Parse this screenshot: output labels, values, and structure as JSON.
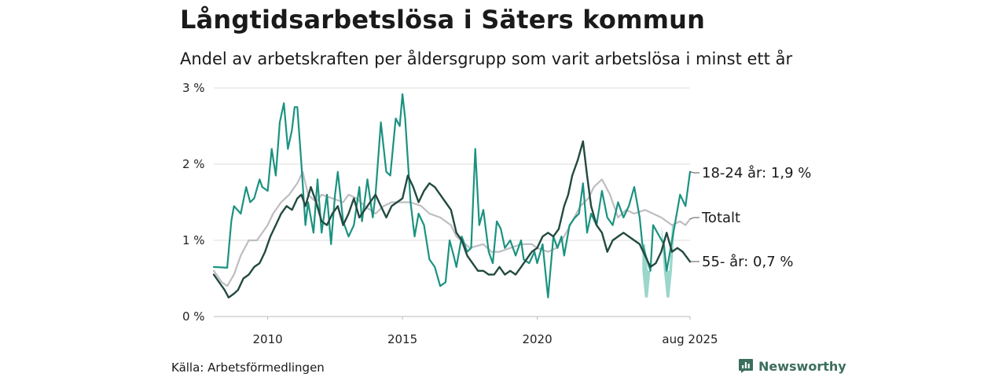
{
  "header": {
    "title": "Långtidsarbetslösa i Säters kommun",
    "subtitle": "Andel av arbetskraften per åldersgrupp som varit arbetslösa i minst ett år"
  },
  "footer": {
    "source": "Källa: Arbetsförmedlingen",
    "brand": "Newsworthy"
  },
  "colors": {
    "youth": "#1b9280",
    "total": "#bdbdc2",
    "older": "#224a40",
    "band": "#8fd1c5",
    "grid": "#dcdcdc",
    "brand": "#3c6e5e"
  },
  "icons": {
    "brand": "bar-chart-icon"
  },
  "chart_data": {
    "type": "line",
    "x_range": [
      2008.0,
      2025.67
    ],
    "ylim": [
      0,
      3
    ],
    "y_ticks": [
      {
        "value": 0,
        "label": "0 %"
      },
      {
        "value": 1,
        "label": "1 %"
      },
      {
        "value": 2,
        "label": "2 %"
      },
      {
        "value": 3,
        "label": "3 %"
      }
    ],
    "x_ticks": [
      {
        "value": 2010,
        "label": "2010"
      },
      {
        "value": 2015,
        "label": "2015"
      },
      {
        "value": 2020,
        "label": "2020"
      },
      {
        "value": 2025.67,
        "label": "aug 2025"
      }
    ],
    "grid": "horizontal",
    "end_labels": [
      {
        "series": "18-24 år",
        "text": "18-24 år: 1,9 %",
        "value": 1.9
      },
      {
        "series": "Totalt",
        "text": "Totalt",
        "value": 1.28
      },
      {
        "series": "55- år",
        "text": "55- år: 0,7 %",
        "value": 0.72
      }
    ],
    "uncertainty_band": {
      "series": "18-24 år",
      "x": [
        2023.9,
        2024.0,
        2024.1,
        2024.2,
        2024.3,
        2024.5,
        2024.6,
        2024.7,
        2024.8,
        2024.9,
        2025.0,
        2025.1
      ],
      "upper": [
        0.95,
        0.95,
        0.6,
        0.6,
        1.2,
        1.2,
        1.2,
        0.95,
        0.6,
        0.6,
        1.2,
        1.2
      ],
      "lower": [
        0.6,
        0.25,
        0.25,
        0.6,
        1.2,
        1.2,
        1.2,
        0.6,
        0.25,
        0.25,
        0.6,
        1.2
      ]
    },
    "series": [
      {
        "name": "18-24 år",
        "x": [
          2008.0,
          2008.5,
          2008.65,
          2008.75,
          2009.0,
          2009.2,
          2009.35,
          2009.5,
          2009.7,
          2009.8,
          2010.0,
          2010.15,
          2010.3,
          2010.45,
          2010.6,
          2010.75,
          2010.9,
          2011.0,
          2011.1,
          2011.25,
          2011.4,
          2011.5,
          2011.7,
          2011.85,
          2012.0,
          2012.2,
          2012.35,
          2012.5,
          2012.6,
          2012.8,
          2013.0,
          2013.2,
          2013.4,
          2013.5,
          2013.7,
          2013.9,
          2014.0,
          2014.2,
          2014.4,
          2014.55,
          2014.75,
          2014.9,
          2015.0,
          2015.1,
          2015.3,
          2015.45,
          2015.6,
          2015.8,
          2016.0,
          2016.2,
          2016.4,
          2016.6,
          2016.75,
          2016.9,
          2017.0,
          2017.2,
          2017.4,
          2017.55,
          2017.7,
          2017.85,
          2018.0,
          2018.2,
          2018.35,
          2018.5,
          2018.65,
          2018.8,
          2019.0,
          2019.2,
          2019.4,
          2019.5,
          2019.7,
          2019.9,
          2020.0,
          2020.2,
          2020.4,
          2020.6,
          2020.75,
          2020.9,
          2021.0,
          2021.2,
          2021.4,
          2021.55,
          2021.7,
          2021.85,
          2022.0,
          2022.2,
          2022.4,
          2022.6,
          2022.8,
          2023.0,
          2023.2,
          2023.4,
          2023.6,
          2023.8,
          2023.9,
          2024.2,
          2024.3,
          2024.7,
          2024.8,
          2025.1,
          2025.3,
          2025.5,
          2025.67
        ],
        "values": [
          0.65,
          0.64,
          1.25,
          1.45,
          1.35,
          1.7,
          1.5,
          1.55,
          1.8,
          1.7,
          1.65,
          2.2,
          1.85,
          2.55,
          2.8,
          2.2,
          2.45,
          2.75,
          2.75,
          2.0,
          1.2,
          1.5,
          1.1,
          1.8,
          1.1,
          1.6,
          0.95,
          1.6,
          1.9,
          1.25,
          1.05,
          1.2,
          1.7,
          1.25,
          1.8,
          1.3,
          1.6,
          2.55,
          1.9,
          1.85,
          2.6,
          2.5,
          2.92,
          2.6,
          1.5,
          1.05,
          1.35,
          1.2,
          0.75,
          0.65,
          0.4,
          0.45,
          1.0,
          0.8,
          0.65,
          1.05,
          0.85,
          0.9,
          2.2,
          1.2,
          1.4,
          0.85,
          0.7,
          1.25,
          1.15,
          0.9,
          1.0,
          0.8,
          1.0,
          0.75,
          0.7,
          0.85,
          0.7,
          0.95,
          0.25,
          1.05,
          0.9,
          1.05,
          0.8,
          1.2,
          1.3,
          1.35,
          1.75,
          1.1,
          1.35,
          1.2,
          1.65,
          1.3,
          1.2,
          1.5,
          1.3,
          1.45,
          1.7,
          1.3,
          0.95,
          0.6,
          1.2,
          0.95,
          0.6,
          1.2,
          1.6,
          1.45,
          1.9
        ]
      },
      {
        "name": "Totalt",
        "x": [
          2008.0,
          2008.3,
          2008.5,
          2008.75,
          2009.0,
          2009.3,
          2009.6,
          2010.0,
          2010.2,
          2010.5,
          2010.8,
          2011.1,
          2011.3,
          2011.5,
          2011.8,
          2012.0,
          2012.4,
          2012.8,
          2013.0,
          2013.3,
          2013.6,
          2014.0,
          2014.3,
          2014.6,
          2015.0,
          2015.3,
          2015.7,
          2016.0,
          2016.4,
          2016.8,
          2017.0,
          2017.5,
          2018.0,
          2018.3,
          2018.6,
          2019.0,
          2019.4,
          2019.8,
          2020.0,
          2020.4,
          2020.7,
          2021.0,
          2021.3,
          2021.6,
          2021.9,
          2022.1,
          2022.4,
          2022.7,
          2023.0,
          2023.3,
          2023.6,
          2024.0,
          2024.3,
          2024.6,
          2025.0,
          2025.3,
          2025.5,
          2025.67
        ],
        "values": [
          0.6,
          0.45,
          0.4,
          0.55,
          0.8,
          1.0,
          1.0,
          1.2,
          1.35,
          1.5,
          1.6,
          1.75,
          1.9,
          1.6,
          1.5,
          1.6,
          1.55,
          1.5,
          1.6,
          1.55,
          1.45,
          1.35,
          1.45,
          1.5,
          1.5,
          1.5,
          1.45,
          1.35,
          1.3,
          1.2,
          1.05,
          0.9,
          0.95,
          0.85,
          0.85,
          0.9,
          0.95,
          0.95,
          0.9,
          0.85,
          0.9,
          1.05,
          1.25,
          1.45,
          1.55,
          1.7,
          1.8,
          1.6,
          1.3,
          1.4,
          1.35,
          1.4,
          1.35,
          1.3,
          1.2,
          1.25,
          1.2,
          1.28
        ]
      },
      {
        "name": "55- år",
        "x": [
          2008.0,
          2008.2,
          2008.4,
          2008.55,
          2008.75,
          2008.9,
          2009.1,
          2009.3,
          2009.5,
          2009.7,
          2009.9,
          2010.1,
          2010.3,
          2010.5,
          2010.7,
          2010.9,
          2011.1,
          2011.25,
          2011.4,
          2011.6,
          2011.8,
          2012.0,
          2012.2,
          2012.4,
          2012.6,
          2012.8,
          2013.0,
          2013.2,
          2013.4,
          2013.6,
          2013.8,
          2014.0,
          2014.2,
          2014.4,
          2014.6,
          2014.8,
          2015.0,
          2015.2,
          2015.4,
          2015.6,
          2015.8,
          2016.0,
          2016.2,
          2016.4,
          2016.6,
          2016.8,
          2017.0,
          2017.2,
          2017.4,
          2017.6,
          2017.8,
          2018.0,
          2018.2,
          2018.4,
          2018.6,
          2018.8,
          2019.0,
          2019.2,
          2019.4,
          2019.6,
          2019.8,
          2020.0,
          2020.2,
          2020.4,
          2020.6,
          2020.8,
          2021.0,
          2021.15,
          2021.3,
          2021.5,
          2021.7,
          2021.85,
          2022.0,
          2022.2,
          2022.4,
          2022.6,
          2022.8,
          2023.0,
          2023.2,
          2023.4,
          2023.6,
          2023.8,
          2024.0,
          2024.2,
          2024.4,
          2024.6,
          2024.8,
          2025.0,
          2025.2,
          2025.4,
          2025.67
        ],
        "values": [
          0.55,
          0.45,
          0.35,
          0.25,
          0.3,
          0.35,
          0.5,
          0.55,
          0.65,
          0.7,
          0.85,
          1.05,
          1.2,
          1.35,
          1.45,
          1.4,
          1.55,
          1.6,
          1.45,
          1.7,
          1.5,
          1.25,
          1.2,
          1.35,
          1.45,
          1.2,
          1.35,
          1.55,
          1.3,
          1.4,
          1.5,
          1.6,
          1.45,
          1.3,
          1.45,
          1.5,
          1.55,
          1.85,
          1.7,
          1.5,
          1.65,
          1.75,
          1.7,
          1.6,
          1.5,
          1.4,
          1.1,
          1.0,
          0.8,
          0.7,
          0.6,
          0.6,
          0.55,
          0.55,
          0.65,
          0.55,
          0.6,
          0.55,
          0.65,
          0.75,
          0.85,
          0.9,
          1.05,
          1.1,
          1.05,
          1.15,
          1.45,
          1.6,
          1.85,
          2.05,
          2.3,
          1.85,
          1.45,
          1.2,
          1.1,
          0.85,
          1.0,
          1.05,
          1.1,
          1.05,
          1.0,
          0.95,
          0.8,
          0.65,
          0.7,
          0.85,
          1.1,
          0.85,
          0.9,
          0.85,
          0.72
        ]
      }
    ]
  }
}
